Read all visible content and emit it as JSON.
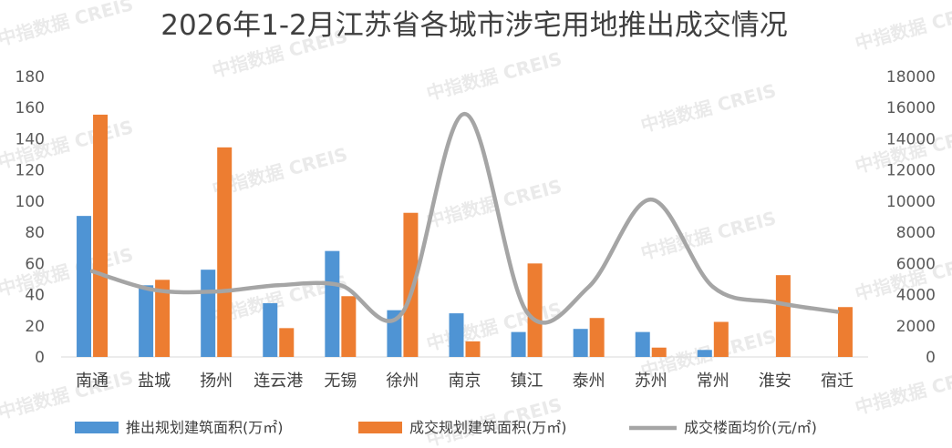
{
  "chart_data": {
    "type": "bar",
    "title": "2026年1-2月江苏省各城市涉宅用地推出成交情况",
    "categories": [
      "南通",
      "盐城",
      "扬州",
      "连云港",
      "无锡",
      "徐州",
      "南京",
      "镇江",
      "泰州",
      "苏州",
      "常州",
      "淮安",
      "宿迁"
    ],
    "series": [
      {
        "name": "推出规划建筑面积(万㎡)",
        "type": "bar",
        "axis": "left",
        "color": "#4f94d4",
        "values": [
          90.5,
          46,
          56,
          34.5,
          68,
          30,
          28,
          16,
          18,
          16,
          4.5,
          0,
          0
        ]
      },
      {
        "name": "成交规划建筑面积(万㎡)",
        "type": "bar",
        "axis": "left",
        "color": "#ed7d31",
        "values": [
          155.5,
          49.5,
          134.5,
          18.5,
          39,
          92.5,
          10,
          60,
          25,
          6,
          22.5,
          52.5,
          32
        ]
      },
      {
        "name": "成交楼面均价(元/㎡)",
        "type": "line",
        "axis": "right",
        "color": "#a5a5a5",
        "values": [
          5500,
          4300,
          4200,
          4600,
          4600,
          2850,
          15600,
          2900,
          4500,
          10100,
          4500,
          3500,
          2900
        ]
      }
    ],
    "left_axis": {
      "ylim": [
        0,
        180
      ],
      "ticks": [
        "0",
        "20",
        "40",
        "60",
        "80",
        "100",
        "120",
        "140",
        "160",
        "180"
      ]
    },
    "right_axis": {
      "ylim": [
        0,
        18000
      ],
      "ticks": [
        "0",
        "2000",
        "4000",
        "6000",
        "8000",
        "10000",
        "12000",
        "14000",
        "16000",
        "18000"
      ]
    },
    "grid": false,
    "legend_position": "bottom"
  },
  "watermark": "中指数据 CREIS"
}
